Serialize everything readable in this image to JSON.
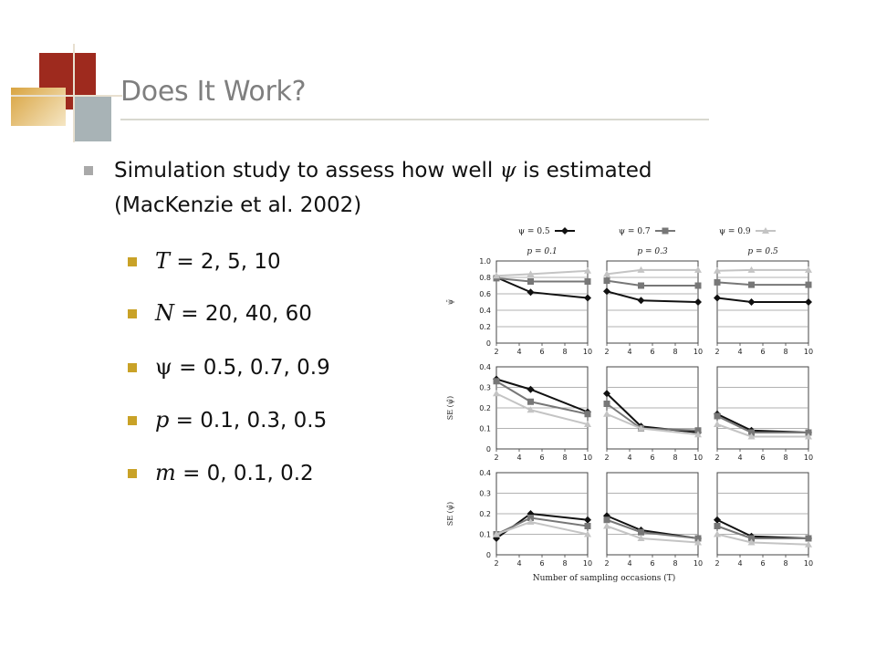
{
  "slide": {
    "title": "Does It Work?",
    "bullet_main": {
      "before": "Simulation study to assess how well ",
      "symbol": "ψ",
      "after_line1": " is estimated",
      "line2": "(MacKenzie et al. 2002)"
    },
    "sub_bullets": [
      {
        "symbol": "T",
        "text": " = 2, 5, 10"
      },
      {
        "symbol": "N",
        "text": " = 20, 40, 60"
      },
      {
        "symbol": "ψ",
        "text": " = 0.5, 0.7, 0.9"
      },
      {
        "symbol": "p",
        "text": " = 0.1, 0.3, 0.5"
      },
      {
        "symbol": "m",
        "text": " = 0, 0.1, 0.2"
      }
    ]
  },
  "chart_data": {
    "type": "line",
    "legend": [
      "ψ = 0.5",
      "ψ = 0.7",
      "ψ = 0.9"
    ],
    "legend_position": "top",
    "series_colors": [
      "#111111",
      "#777777",
      "#c4c4c4"
    ],
    "column_labels": [
      "p = 0.1",
      "p = 0.3",
      "p = 0.5"
    ],
    "xlabel": "Number of sampling occasions (T)",
    "x": [
      2,
      5,
      10
    ],
    "x_ticks": [
      2,
      4,
      6,
      8,
      10
    ],
    "grid": true,
    "rows": [
      {
        "ylabel": "ψ̄",
        "ylim": [
          0,
          1.0
        ],
        "y_ticks": [
          "0",
          "0.2",
          "0.4",
          "0.6",
          "0.8",
          "1.0"
        ],
        "panels": [
          {
            "series": [
              [
                0.8,
                0.62,
                0.55
              ],
              [
                0.79,
                0.75,
                0.75
              ],
              [
                0.82,
                0.84,
                0.88
              ]
            ]
          },
          {
            "series": [
              [
                0.63,
                0.52,
                0.5
              ],
              [
                0.76,
                0.7,
                0.7
              ],
              [
                0.84,
                0.89,
                0.89
              ]
            ]
          },
          {
            "series": [
              [
                0.55,
                0.5,
                0.5
              ],
              [
                0.74,
                0.71,
                0.71
              ],
              [
                0.88,
                0.89,
                0.89
              ]
            ]
          }
        ]
      },
      {
        "ylabel": "SE (ψ̂)",
        "ylim": [
          0,
          0.4
        ],
        "y_ticks": [
          "0",
          "0.1",
          "0.2",
          "0.3",
          "0.4"
        ],
        "panels": [
          {
            "series": [
              [
                0.34,
                0.29,
                0.18
              ],
              [
                0.33,
                0.23,
                0.17
              ],
              [
                0.27,
                0.19,
                0.12
              ]
            ]
          },
          {
            "series": [
              [
                0.27,
                0.11,
                0.08
              ],
              [
                0.22,
                0.1,
                0.09
              ],
              [
                0.17,
                0.1,
                0.07
              ]
            ]
          },
          {
            "series": [
              [
                0.17,
                0.09,
                0.08
              ],
              [
                0.16,
                0.08,
                0.08
              ],
              [
                0.12,
                0.06,
                0.06
              ]
            ]
          }
        ]
      },
      {
        "ylabel": "SE (ψ̂)",
        "ylim": [
          0,
          0.4
        ],
        "y_ticks": [
          "0",
          "0.1",
          "0.2",
          "0.3",
          "0.4"
        ],
        "panels": [
          {
            "series": [
              [
                0.08,
                0.2,
                0.17
              ],
              [
                0.1,
                0.18,
                0.14
              ],
              [
                0.1,
                0.16,
                0.1
              ]
            ]
          },
          {
            "series": [
              [
                0.19,
                0.12,
                0.08
              ],
              [
                0.17,
                0.11,
                0.08
              ],
              [
                0.14,
                0.08,
                0.06
              ]
            ]
          },
          {
            "series": [
              [
                0.17,
                0.09,
                0.08
              ],
              [
                0.14,
                0.08,
                0.08
              ],
              [
                0.1,
                0.06,
                0.05
              ]
            ]
          }
        ]
      }
    ]
  }
}
